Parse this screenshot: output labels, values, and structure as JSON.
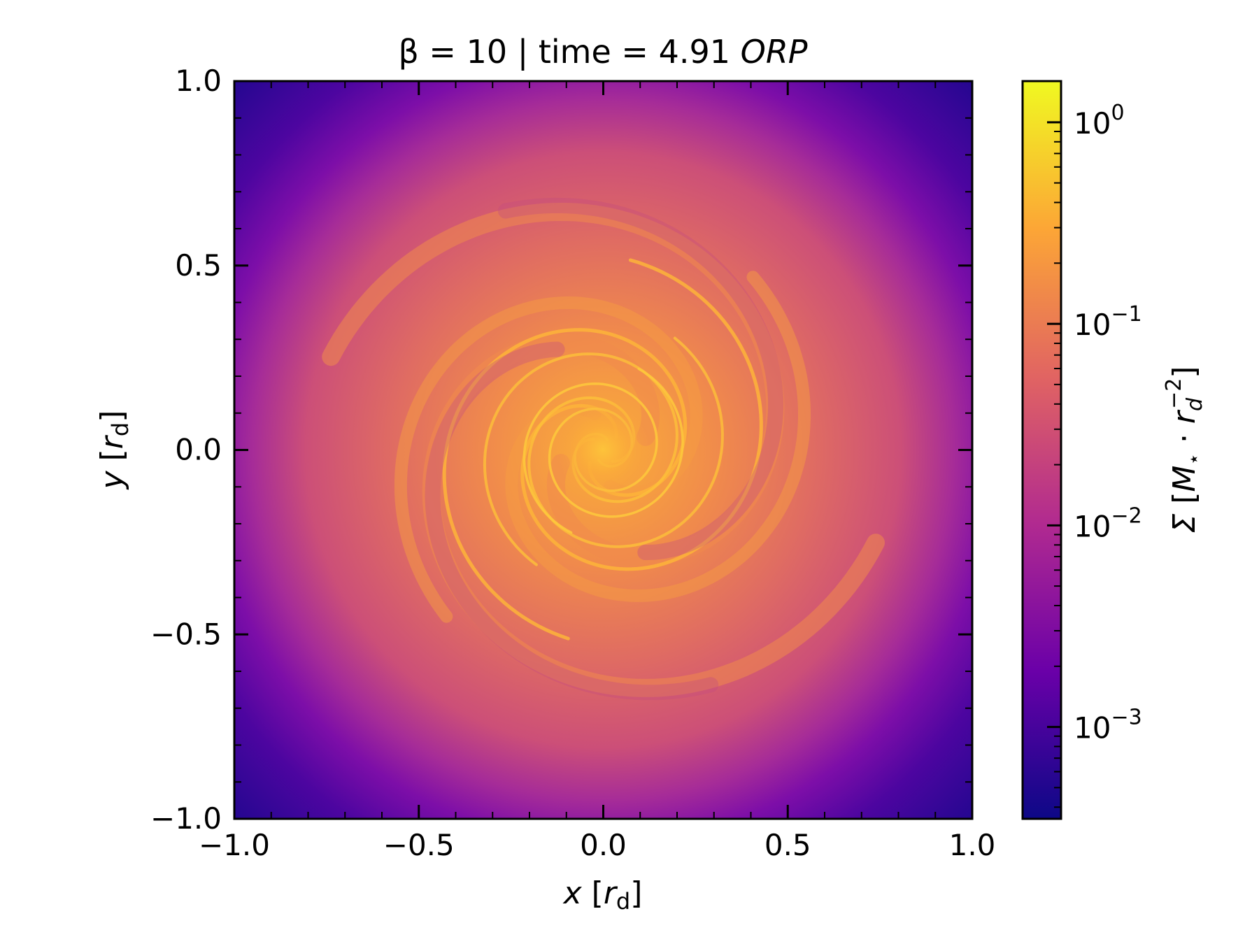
{
  "chart_data": {
    "type": "heatmap",
    "title": {
      "prefix": "β = 10 | time = 4.91 ",
      "suffix": "ORP"
    },
    "xlabel": {
      "var": "x",
      "open": " [",
      "unit": "r",
      "sub": "d",
      "close": "]"
    },
    "ylabel": {
      "var": "y",
      "open": " [",
      "unit": "r",
      "sub": "d",
      "close": "]"
    },
    "xlim": [
      -1.0,
      1.0
    ],
    "ylim": [
      -1.0,
      1.0
    ],
    "xticks": [
      {
        "value": -1.0,
        "label": "−1.0"
      },
      {
        "value": -0.5,
        "label": "−0.5"
      },
      {
        "value": 0.0,
        "label": "0.0"
      },
      {
        "value": 0.5,
        "label": "0.5"
      },
      {
        "value": 1.0,
        "label": "1.0"
      }
    ],
    "yticks": [
      {
        "value": -1.0,
        "label": "−1.0"
      },
      {
        "value": -0.5,
        "label": "−0.5"
      },
      {
        "value": 0.0,
        "label": "0.0"
      },
      {
        "value": 0.5,
        "label": "0.5"
      },
      {
        "value": 1.0,
        "label": "1.0"
      }
    ],
    "minor_tick_step": 0.1,
    "colormap": "plasma",
    "colorbar": {
      "scale": "log",
      "range": [
        0.00035,
        1.6
      ],
      "ticks": [
        {
          "value": 1,
          "base": "10",
          "exp": "0"
        },
        {
          "value": 0.1,
          "base": "10",
          "exp": "−1"
        },
        {
          "value": 0.01,
          "base": "10",
          "exp": "−2"
        },
        {
          "value": 0.001,
          "base": "10",
          "exp": "−3"
        }
      ],
      "label": {
        "sigma": "Σ",
        "open": " [",
        "mass": "M",
        "mass_sub": "⋆",
        "dot": " · ",
        "radius": "r",
        "radius_sub": "d",
        "radius_sup": "−2",
        "close": "]"
      }
    },
    "colors": {
      "plasma_0": "#0d0887",
      "plasma_1": "#6a00a8",
      "plasma_2": "#b12a90",
      "plasma_3": "#e16462",
      "plasma_4": "#fca636",
      "plasma_5": "#f0f921"
    }
  }
}
